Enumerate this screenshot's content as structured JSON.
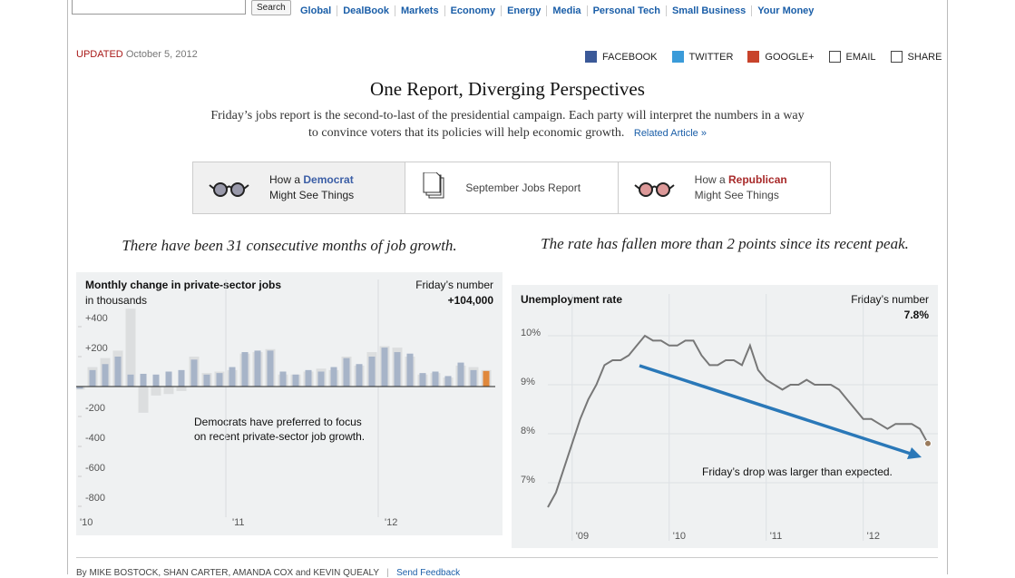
{
  "nav": {
    "search_button": "Search",
    "links": [
      "Global",
      "DealBook",
      "Markets",
      "Economy",
      "Energy",
      "Media",
      "Personal Tech",
      "Small Business",
      "Your Money"
    ]
  },
  "header": {
    "updated_label": "UPDATED",
    "date": "October 5, 2012",
    "share": [
      "FACEBOOK",
      "TWITTER",
      "GOOGLE+",
      "EMAIL",
      "SHARE"
    ]
  },
  "title": "One Report, Diverging Perspectives",
  "intro": [
    "Friday’s jobs report is the second-to-last of the presidential campaign. Each party will interpret the numbers in a way",
    "to convince voters that its policies will help economic growth."
  ],
  "related_link": "Related Article »",
  "tabs": [
    {
      "prefix": "How a",
      "party": "Democrat",
      "suffix": "Might See Things"
    },
    {
      "label": "September Jobs Report"
    },
    {
      "prefix": "How a",
      "party": "Republican",
      "suffix": "Might See Things"
    }
  ],
  "headlines": [
    "There have been 31 consecutive months of job growth.",
    "The rate has fallen more than 2 points since its recent peak."
  ],
  "chart_data": [
    {
      "type": "bar",
      "title": "Monthly change in private-sector jobs",
      "subtitle": "in thousands",
      "callout_label": "Friday’s number",
      "callout_value": "+104,000",
      "annotation": [
        "Democrats have preferred to focus",
        "on recent private-sector job growth."
      ],
      "categories": [
        "'10",
        null,
        null,
        null,
        null,
        null,
        null,
        null,
        null,
        null,
        null,
        null,
        "'11",
        null,
        null,
        null,
        null,
        null,
        null,
        null,
        null,
        null,
        null,
        null,
        "'12",
        null,
        null,
        null,
        null,
        null,
        null,
        null,
        null
      ],
      "series": [
        {
          "color": "#dcdedf",
          "values": [
            -20,
            130,
            190,
            240,
            520,
            -175,
            -60,
            -50,
            -30,
            200,
            90,
            100,
            110,
            220,
            230,
            250,
            80,
            80,
            100,
            120,
            110,
            200,
            140,
            230,
            270,
            260,
            200,
            80,
            90,
            60,
            140,
            130,
            110
          ]
        },
        {
          "color": "#a7b4c8",
          "values": [
            -15,
            110,
            150,
            200,
            80,
            85,
            80,
            100,
            110,
            180,
            80,
            90,
            130,
            230,
            240,
            240,
            100,
            80,
            110,
            100,
            130,
            190,
            150,
            200,
            260,
            230,
            220,
            90,
            100,
            70,
            160,
            110,
            104
          ]
        }
      ],
      "highlight_color": "#e0883c",
      "ylim": [
        -900,
        700
      ],
      "yticks": [
        {
          "value": 400,
          "label": "+400"
        },
        {
          "value": 200,
          "label": "+200"
        },
        -200,
        -400,
        -600,
        -800
      ]
    },
    {
      "type": "line",
      "title": "Unemployment rate",
      "callout_label": "Friday’s number",
      "callout_value": "7.8%",
      "annotation": "Friday’s drop was larger than expected.",
      "color": "#777777",
      "arrow_color": "#2a78b8",
      "marker_color": "#9a7b5c",
      "categories": [
        null,
        null,
        null,
        "'09",
        null,
        null,
        null,
        null,
        null,
        null,
        null,
        null,
        null,
        null,
        null,
        "'10",
        null,
        null,
        null,
        null,
        null,
        null,
        null,
        null,
        null,
        null,
        null,
        "'11",
        null,
        null,
        null,
        null,
        null,
        null,
        null,
        null,
        null,
        null,
        null,
        "'12",
        null,
        null,
        null,
        null,
        null,
        null,
        null,
        null
      ],
      "values": [
        6.5,
        6.8,
        7.3,
        7.8,
        8.3,
        8.7,
        9.0,
        9.4,
        9.5,
        9.5,
        9.6,
        9.8,
        10.0,
        9.9,
        9.9,
        9.8,
        9.8,
        9.9,
        9.9,
        9.6,
        9.4,
        9.4,
        9.5,
        9.5,
        9.4,
        9.8,
        9.3,
        9.1,
        9.0,
        8.9,
        9.0,
        9.0,
        9.1,
        9.0,
        9.0,
        9.0,
        8.9,
        8.7,
        8.5,
        8.3,
        8.3,
        8.2,
        8.1,
        8.2,
        8.2,
        8.2,
        8.1,
        7.8
      ],
      "ylim": [
        6.2,
        11
      ],
      "yticks": [
        {
          "value": 10,
          "label": "10%"
        },
        {
          "value": 9,
          "label": "9%"
        },
        {
          "value": 8,
          "label": "8%"
        },
        {
          "value": 7,
          "label": "7%"
        }
      ]
    }
  ],
  "footer": {
    "byline": "By MIKE BOSTOCK, SHAN CARTER, AMANDA COX and KEVIN QUEALY",
    "separator": "|",
    "feedback": "Send Feedback"
  }
}
